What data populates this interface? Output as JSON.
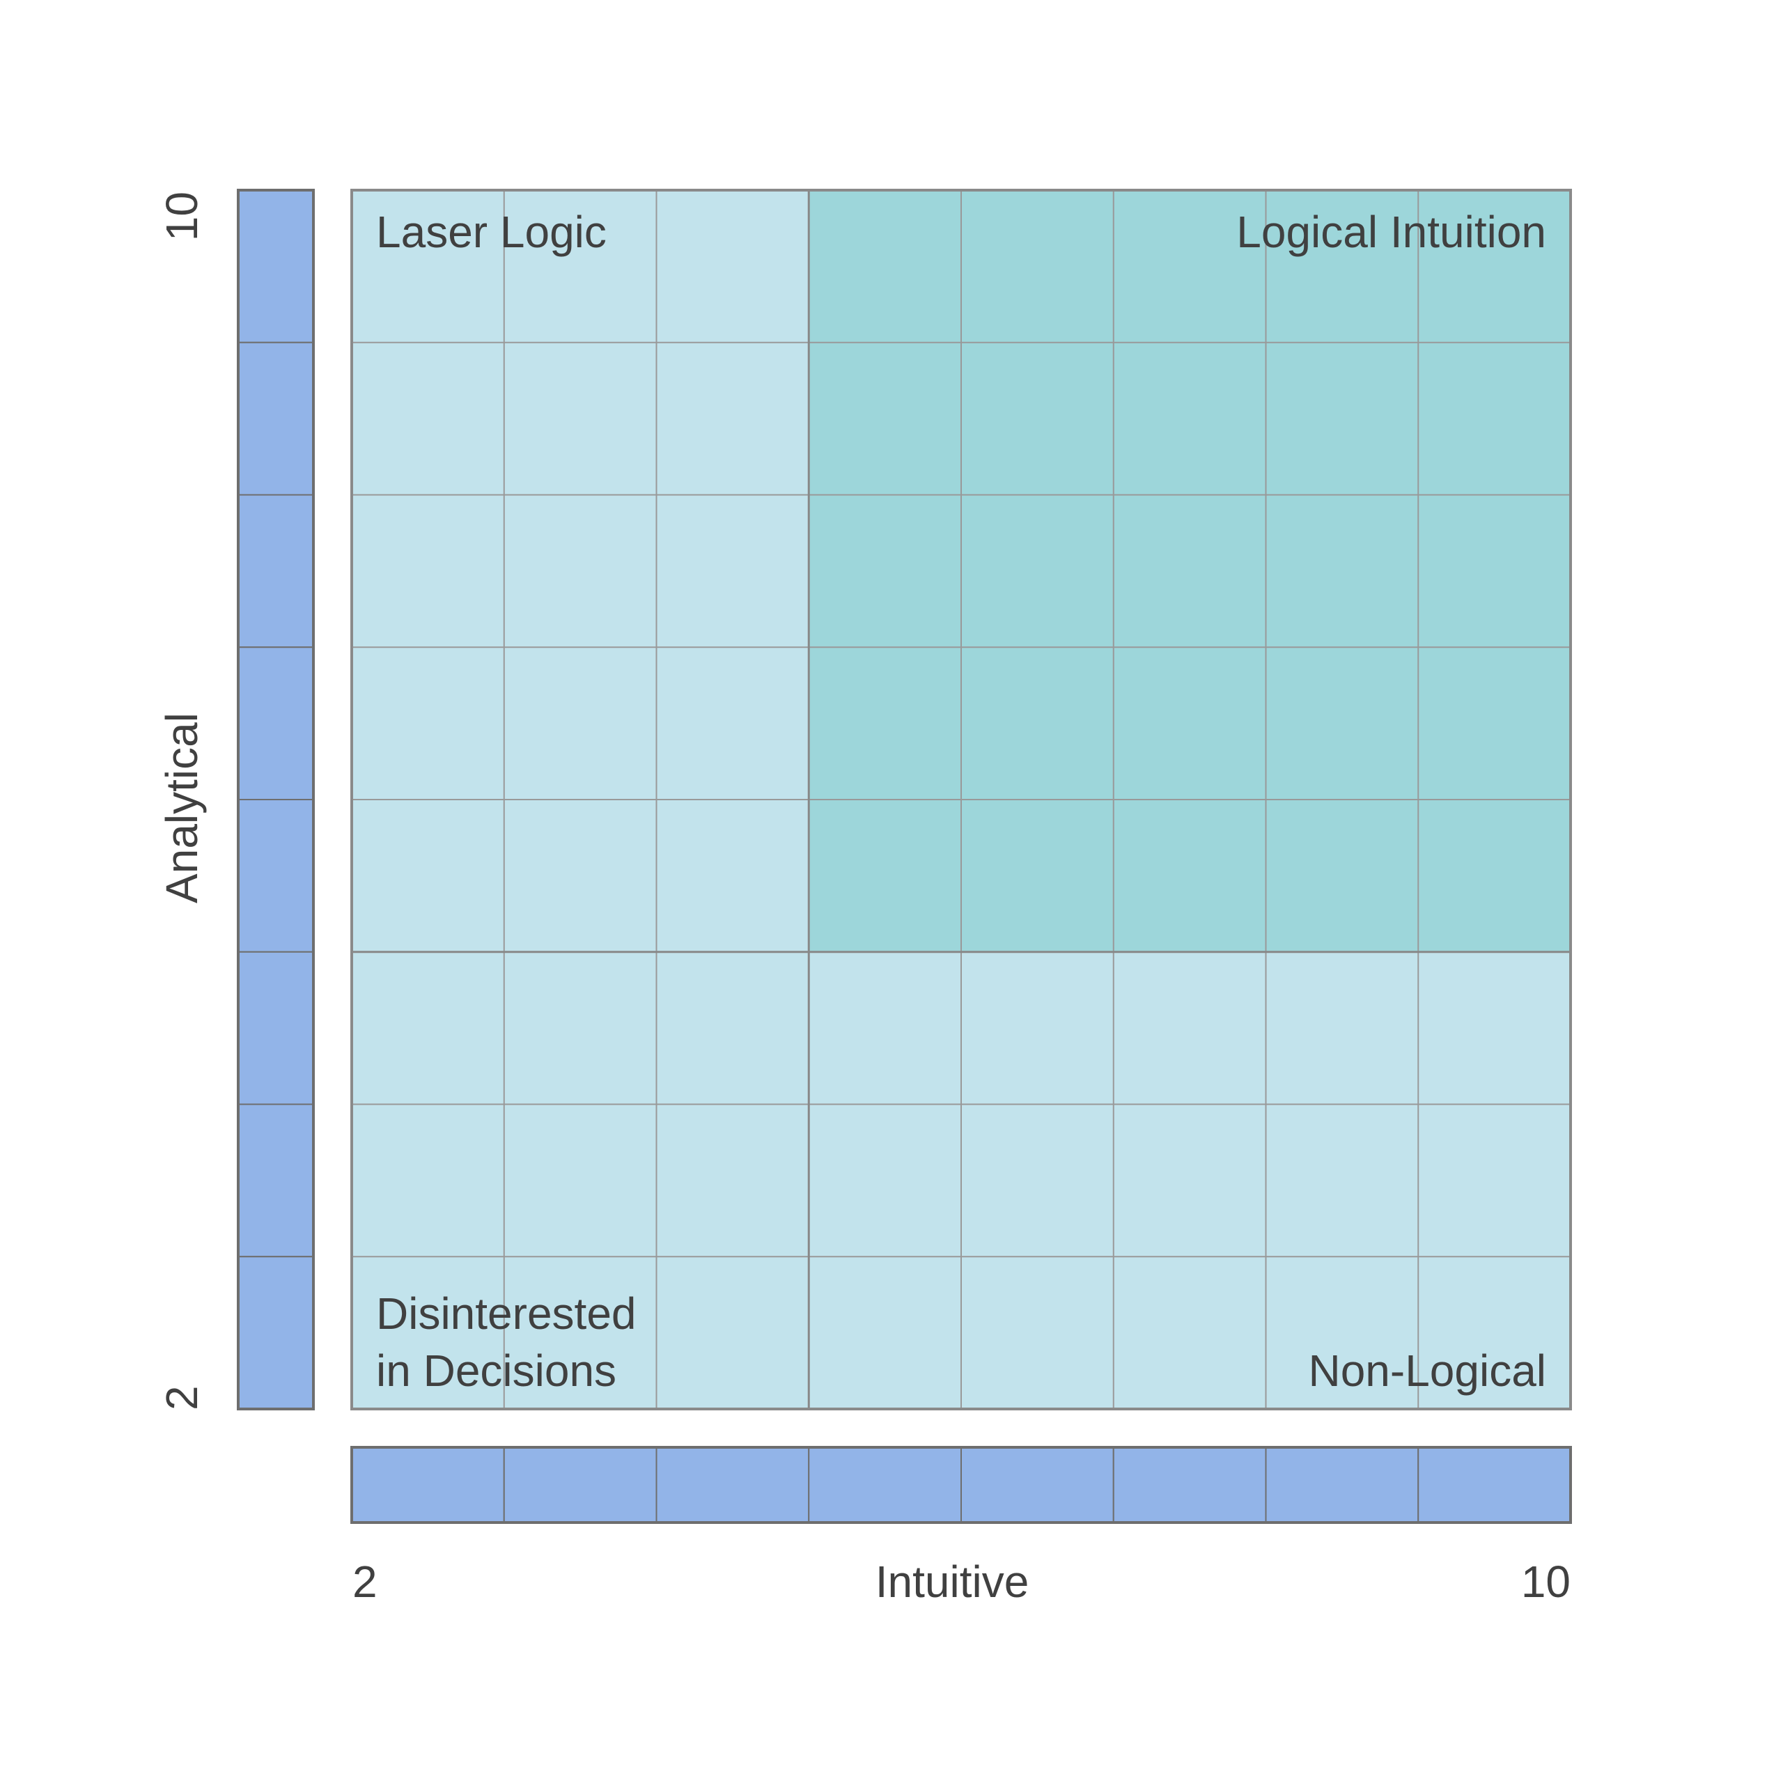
{
  "diagram": {
    "x_axis": {
      "label": "Intuitive",
      "min_label": "2",
      "max_label": "10",
      "segments": 8
    },
    "y_axis": {
      "label": "Analytical",
      "min_label": "2",
      "max_label": "10",
      "segments": 8
    },
    "grid": {
      "columns": 8,
      "rows": 8,
      "highlight": {
        "col_start": 3,
        "col_end": 8,
        "row_start": 0,
        "row_end": 5
      }
    },
    "quadrants": {
      "top_left": "Laser Logic",
      "top_right": "Logical Intuition",
      "bottom_left_line1": "Disinterested",
      "bottom_left_line2": "in Decisions",
      "bottom_right": "Non-Logical"
    },
    "colors": {
      "cell_base": "#c2e3ec",
      "cell_highlight": "#9dd6da",
      "grid_line": "#999999",
      "axis_bar_fill": "#92b4e8",
      "axis_bar_stroke": "#6e6e6e",
      "frame_stroke": "#8a8a8a",
      "text": "#404040"
    }
  }
}
